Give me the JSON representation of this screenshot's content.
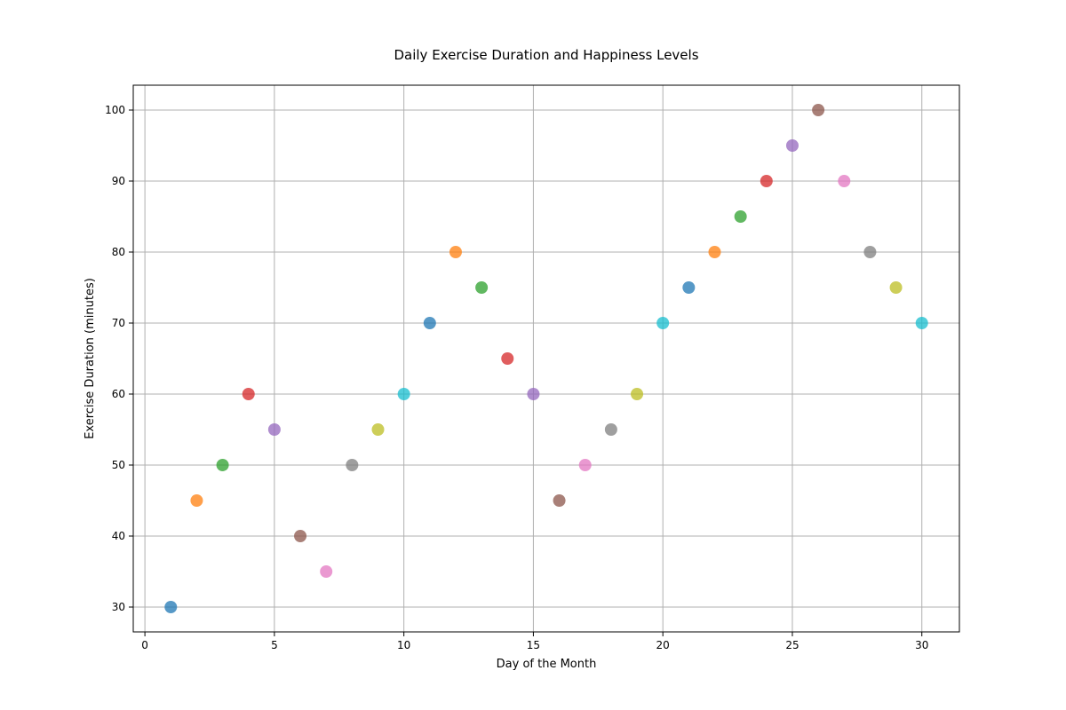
{
  "chart_data": {
    "type": "scatter",
    "title": "Daily Exercise Duration and Happiness Levels",
    "xlabel": "Day of the Month",
    "ylabel": "Exercise Duration (minutes)",
    "xlim": [
      -0.45,
      31.45
    ],
    "ylim": [
      26.5,
      103.5
    ],
    "xticks": [
      0,
      5,
      10,
      15,
      20,
      25,
      30
    ],
    "yticks": [
      30,
      40,
      50,
      60,
      70,
      80,
      90,
      100
    ],
    "grid": true,
    "colors": [
      "#1f77b4",
      "#ff7f0e",
      "#2ca02c",
      "#d62728",
      "#9467bd",
      "#8c564b",
      "#e377c2",
      "#7f7f7f",
      "#bcbd22",
      "#17becf"
    ],
    "points": [
      {
        "x": 1,
        "y": 30
      },
      {
        "x": 2,
        "y": 45
      },
      {
        "x": 3,
        "y": 50
      },
      {
        "x": 4,
        "y": 60
      },
      {
        "x": 5,
        "y": 55
      },
      {
        "x": 6,
        "y": 40
      },
      {
        "x": 7,
        "y": 35
      },
      {
        "x": 8,
        "y": 50
      },
      {
        "x": 9,
        "y": 55
      },
      {
        "x": 10,
        "y": 60
      },
      {
        "x": 11,
        "y": 70
      },
      {
        "x": 12,
        "y": 80
      },
      {
        "x": 13,
        "y": 75
      },
      {
        "x": 14,
        "y": 65
      },
      {
        "x": 15,
        "y": 60
      },
      {
        "x": 16,
        "y": 45
      },
      {
        "x": 17,
        "y": 50
      },
      {
        "x": 18,
        "y": 55
      },
      {
        "x": 19,
        "y": 60
      },
      {
        "x": 20,
        "y": 70
      },
      {
        "x": 21,
        "y": 75
      },
      {
        "x": 22,
        "y": 80
      },
      {
        "x": 23,
        "y": 85
      },
      {
        "x": 24,
        "y": 90
      },
      {
        "x": 25,
        "y": 95
      },
      {
        "x": 26,
        "y": 100
      },
      {
        "x": 27,
        "y": 90
      },
      {
        "x": 28,
        "y": 80
      },
      {
        "x": 29,
        "y": 75
      },
      {
        "x": 30,
        "y": 70
      }
    ]
  }
}
